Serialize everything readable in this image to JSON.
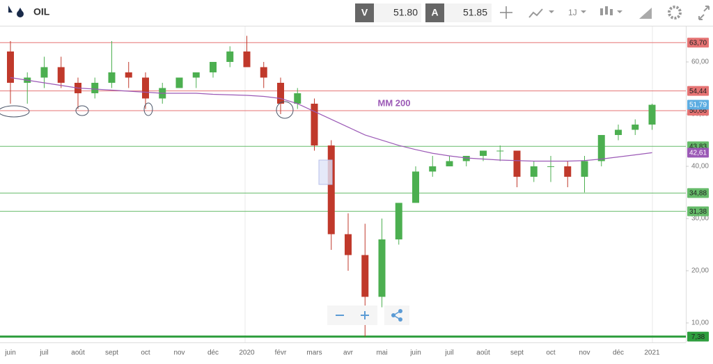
{
  "toolbar": {
    "symbol": "OIL",
    "bid_label": "V",
    "bid": "51.80",
    "ask_label": "A",
    "ask": "51.85",
    "period": "1J"
  },
  "chart_data": {
    "type": "candlestick",
    "categories": [
      "juin",
      null,
      "juil",
      null,
      "août",
      null,
      "sept",
      null,
      "oct",
      null,
      "nov",
      null,
      "déc",
      null,
      "2020",
      null,
      "févr",
      null,
      "mars",
      null,
      "avr",
      null,
      "mai",
      null,
      "juin",
      null,
      "juil",
      null,
      "août",
      null,
      "sept",
      null,
      "oct",
      null,
      "nov",
      null,
      "déc",
      null,
      "2021"
    ],
    "open": [
      62,
      56,
      57,
      59,
      56,
      54,
      56,
      58,
      57,
      53,
      55,
      57,
      58,
      60,
      62,
      59,
      56,
      52,
      52,
      44,
      27,
      23,
      15,
      26,
      33,
      39,
      40,
      41,
      42,
      43,
      43,
      38,
      40,
      40,
      38,
      41,
      46,
      47,
      48
    ],
    "high": [
      64,
      58,
      61,
      61,
      57,
      57,
      64,
      60,
      58,
      56,
      57,
      58,
      60,
      63,
      65,
      60,
      57,
      55,
      53,
      45,
      31,
      29,
      30,
      33,
      40,
      42,
      42,
      42,
      43,
      44,
      43,
      41,
      42,
      41,
      42,
      46,
      48,
      49,
      52
    ],
    "low": [
      52,
      52,
      55,
      55,
      51,
      53,
      55,
      55,
      51,
      52,
      55,
      55,
      57,
      59,
      59,
      55,
      50,
      51,
      43,
      24,
      20,
      7.38,
      13,
      25,
      33,
      38,
      40,
      40,
      41,
      41,
      36,
      37,
      37,
      36,
      35,
      40,
      45,
      46,
      47
    ],
    "close": [
      56,
      57,
      59,
      56,
      54,
      56,
      58,
      57,
      53,
      55,
      57,
      58,
      60,
      62,
      59,
      57,
      52,
      54,
      44,
      27,
      23,
      15,
      26,
      33,
      39,
      40,
      41,
      42,
      43,
      43,
      38,
      40,
      40,
      38,
      41,
      46,
      47,
      48,
      51.79
    ],
    "up_color": "#4caf50",
    "down_color": "#c0392b",
    "ma": {
      "name": "MM 200",
      "color": "#9b59b6",
      "values": [
        57,
        56.5,
        56,
        55.5,
        55,
        54.8,
        54.6,
        54.4,
        54.2,
        54,
        54,
        54,
        53.8,
        53.7,
        53.6,
        53.4,
        53,
        52,
        50.5,
        49,
        47.5,
        46,
        45,
        44,
        43.2,
        42.5,
        42,
        41.6,
        41.4,
        41.2,
        41.1,
        41,
        41,
        41,
        41.1,
        41.4,
        41.8,
        42.2,
        42.61
      ]
    },
    "levels": [
      {
        "value": 63.7,
        "label": "63,70",
        "color": "#e57373"
      },
      {
        "value": 54.44,
        "label": "54,44",
        "color": "#e57373"
      },
      {
        "value": 50.66,
        "label": "50,66",
        "color": "#e57373"
      },
      {
        "value": 43.83,
        "label": "43,83",
        "color": "#66bb6a"
      },
      {
        "value": 34.88,
        "label": "34,88",
        "color": "#66bb6a"
      },
      {
        "value": 31.38,
        "label": "31,38",
        "color": "#66bb6a"
      },
      {
        "value": 7.38,
        "label": "7,38",
        "color": "#2e9e3e"
      }
    ],
    "markers": [
      {
        "value": 51.79,
        "label": "51,79",
        "color": "#5dade2"
      },
      {
        "value": 42.61,
        "label": "42,61",
        "color": "#9b59b6"
      }
    ],
    "ylim": [
      6.53,
      66.93
    ],
    "yticks": [
      {
        "value": 10,
        "label": "10,00"
      },
      {
        "value": 20,
        "label": "20,00"
      },
      {
        "value": 30,
        "label": "30,00"
      },
      {
        "value": 40,
        "label": "40,00"
      },
      {
        "value": 50,
        "label": "50,00"
      },
      {
        "value": 60,
        "label": "60,00"
      }
    ]
  }
}
